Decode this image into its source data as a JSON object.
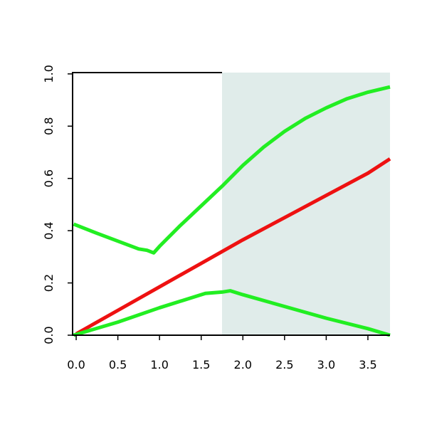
{
  "chart_data": {
    "type": "line",
    "xlim": [
      -0.043,
      3.765
    ],
    "ylim": [
      0,
      1.005
    ],
    "xticks": [
      {
        "value": 0,
        "label": "0.0"
      },
      {
        "value": 0.5,
        "label": "0.5"
      },
      {
        "value": 1,
        "label": "1.0"
      },
      {
        "value": 1.5,
        "label": "1.5"
      },
      {
        "value": 2,
        "label": "2.0"
      },
      {
        "value": 2.5,
        "label": "2.5"
      },
      {
        "value": 3,
        "label": "3.0"
      },
      {
        "value": 3.5,
        "label": "3.5"
      }
    ],
    "yticks": [
      {
        "value": 0,
        "label": "0.0"
      },
      {
        "value": 0.2,
        "label": "0.2"
      },
      {
        "value": 0.4,
        "label": "0.4"
      },
      {
        "value": 0.6,
        "label": "0.6"
      },
      {
        "value": 0.8,
        "label": "0.8"
      },
      {
        "value": 1,
        "label": "1.0"
      }
    ],
    "shaded_region": [
      1.75,
      3.765
    ],
    "shade_color": "#e0ecea",
    "series": [
      {
        "color": "#ee1111",
        "x": [
          0,
          0.5,
          1,
          1.5,
          2,
          2.5,
          3,
          3.5,
          3.765
        ],
        "values": [
          0.005,
          0.095,
          0.185,
          0.275,
          0.365,
          0.45,
          0.535,
          0.62,
          0.675
        ]
      },
      {
        "color": "#22ee22",
        "x": [
          -0.03,
          0.25,
          0.5,
          0.75,
          0.85,
          0.93,
          1.0,
          1.25,
          1.5,
          1.75,
          2.0,
          2.25,
          2.5,
          2.75,
          3.0,
          3.25,
          3.5,
          3.765
        ],
        "values": [
          0.425,
          0.39,
          0.36,
          0.33,
          0.325,
          0.315,
          0.34,
          0.42,
          0.495,
          0.57,
          0.65,
          0.72,
          0.78,
          0.83,
          0.87,
          0.905,
          0.93,
          0.95
        ]
      },
      {
        "color": "#22ee22",
        "x": [
          -0.03,
          0.5,
          1.0,
          1.55,
          1.75,
          1.85,
          2.0,
          2.5,
          3.0,
          3.5,
          3.765
        ],
        "values": [
          0.0,
          0.05,
          0.105,
          0.16,
          0.165,
          0.17,
          0.155,
          0.11,
          0.065,
          0.025,
          0.0
        ]
      }
    ]
  }
}
